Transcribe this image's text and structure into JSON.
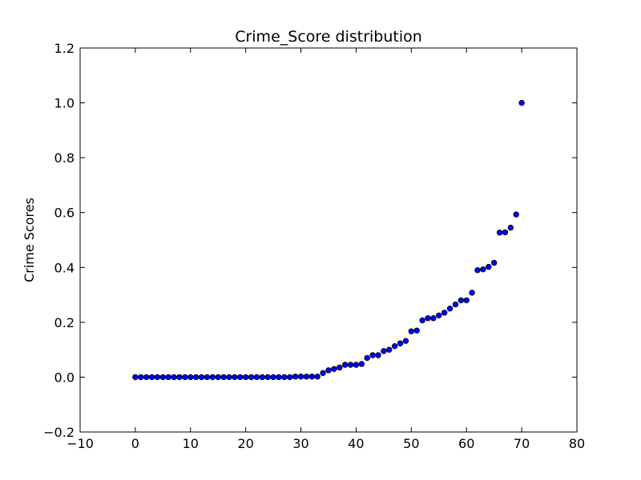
{
  "chart_data": {
    "type": "scatter",
    "title": "Crime_Score distribution",
    "xlabel": "",
    "ylabel": "Crime Scores",
    "xlim": [
      -10,
      80
    ],
    "ylim": [
      -0.2,
      1.2
    ],
    "x_ticks": [
      -10,
      0,
      10,
      20,
      30,
      40,
      50,
      60,
      70,
      80
    ],
    "y_ticks": [
      -0.2,
      0.0,
      0.2,
      0.4,
      0.6,
      0.8,
      1.0,
      1.2
    ],
    "x_tick_labels": [
      "−10",
      "0",
      "10",
      "20",
      "30",
      "40",
      "50",
      "60",
      "70",
      "80"
    ],
    "y_tick_labels": [
      "−0.2",
      "0.0",
      "0.2",
      "0.4",
      "0.6",
      "0.8",
      "1.0",
      "1.2"
    ],
    "grid": false,
    "marker_color": "#0000ff",
    "series": [
      {
        "x": [
          0,
          1,
          2,
          3,
          4,
          5,
          6,
          7,
          8,
          9,
          10,
          11,
          12,
          13,
          14,
          15,
          16,
          17,
          18,
          19,
          20,
          21,
          22,
          23,
          24,
          25,
          26,
          27,
          28,
          29,
          30,
          31,
          32,
          33,
          34,
          35,
          36,
          37,
          38,
          39,
          40,
          41,
          42,
          43,
          44,
          45,
          46,
          47,
          48,
          49,
          50,
          51,
          52,
          53,
          54,
          55,
          56,
          57,
          58,
          59,
          60,
          61,
          62,
          63,
          64,
          65,
          66,
          67,
          68,
          69,
          70
        ],
        "y": [
          0,
          0,
          0,
          0,
          0,
          0,
          0,
          0,
          0,
          0,
          0,
          0,
          0,
          0,
          0,
          0,
          0,
          0,
          0,
          0,
          0,
          0,
          0,
          0,
          0,
          0,
          0,
          0,
          0,
          0.002,
          0.002,
          0.002,
          0.002,
          0.002,
          0.015,
          0.025,
          0.03,
          0.035,
          0.045,
          0.045,
          0.045,
          0.048,
          0.07,
          0.08,
          0.08,
          0.095,
          0.1,
          0.113,
          0.123,
          0.132,
          0.167,
          0.17,
          0.207,
          0.215,
          0.215,
          0.225,
          0.235,
          0.25,
          0.265,
          0.28,
          0.28,
          0.308,
          0.39,
          0.393,
          0.402,
          0.417,
          0.527,
          0.528,
          0.545,
          0.593,
          1.0
        ]
      }
    ]
  }
}
